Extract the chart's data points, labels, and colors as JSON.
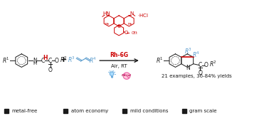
{
  "bg_color": "#ffffff",
  "figsize": [
    3.78,
    1.63
  ],
  "dpi": 100,
  "legend_items": [
    "metal-free",
    "atom economy",
    "mild conditions",
    "gram scale"
  ],
  "yield_text": "21 examples, 36-84% yields",
  "rh6g_label": "Rh-6G",
  "conditions": "Air, RT",
  "red": "#cc0000",
  "blue": "#5599cc",
  "black": "#1a1a1a",
  "pink": "#ee66aa",
  "light_blue_icon": "#66aadd"
}
